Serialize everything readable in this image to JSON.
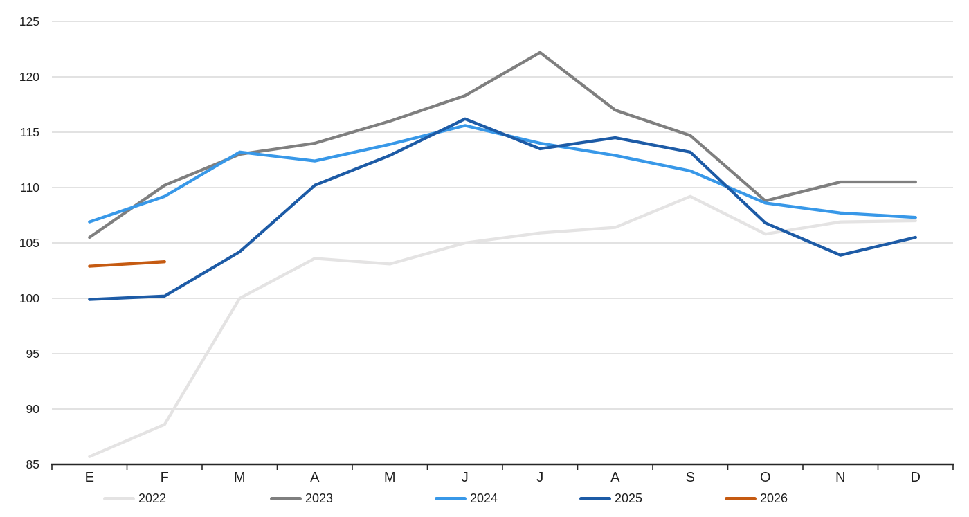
{
  "chart_data": {
    "type": "line",
    "title": "",
    "x_categories": [
      "E",
      "F",
      "M",
      "A",
      "M",
      "J",
      "J",
      "A",
      "S",
      "O",
      "N",
      "D"
    ],
    "y_axis": {
      "min": 85,
      "max": 125,
      "step": 5
    },
    "grid": "horizontal-only",
    "legend_position": "bottom",
    "series": [
      {
        "name": "2022",
        "color": "#e4e3e3",
        "values": [
          85.7,
          88.6,
          100.0,
          103.6,
          103.1,
          105.0,
          105.9,
          106.4,
          109.2,
          105.8,
          106.9,
          107.0
        ]
      },
      {
        "name": "2023",
        "color": "#7f7f7f",
        "values": [
          105.5,
          110.2,
          113.0,
          114.0,
          116.0,
          118.3,
          122.2,
          117.0,
          114.7,
          108.8,
          110.5,
          110.5
        ]
      },
      {
        "name": "2024",
        "color": "#3898e8",
        "values": [
          106.9,
          109.2,
          113.2,
          112.4,
          113.9,
          115.6,
          114.0,
          112.9,
          111.5,
          108.6,
          107.7,
          107.3
        ]
      },
      {
        "name": "2025",
        "color": "#1d5ba6",
        "values": [
          99.9,
          100.2,
          104.2,
          110.2,
          112.9,
          116.2,
          113.5,
          114.5,
          113.2,
          106.8,
          103.9,
          105.5
        ]
      },
      {
        "name": "2026",
        "color": "#c55a11",
        "values": [
          102.9,
          103.3
        ]
      }
    ],
    "style": {
      "gridline_color": "#d9d9d9",
      "axis_color": "#262626",
      "label_color": "#1f1f1f",
      "line_width": 4.3
    }
  }
}
